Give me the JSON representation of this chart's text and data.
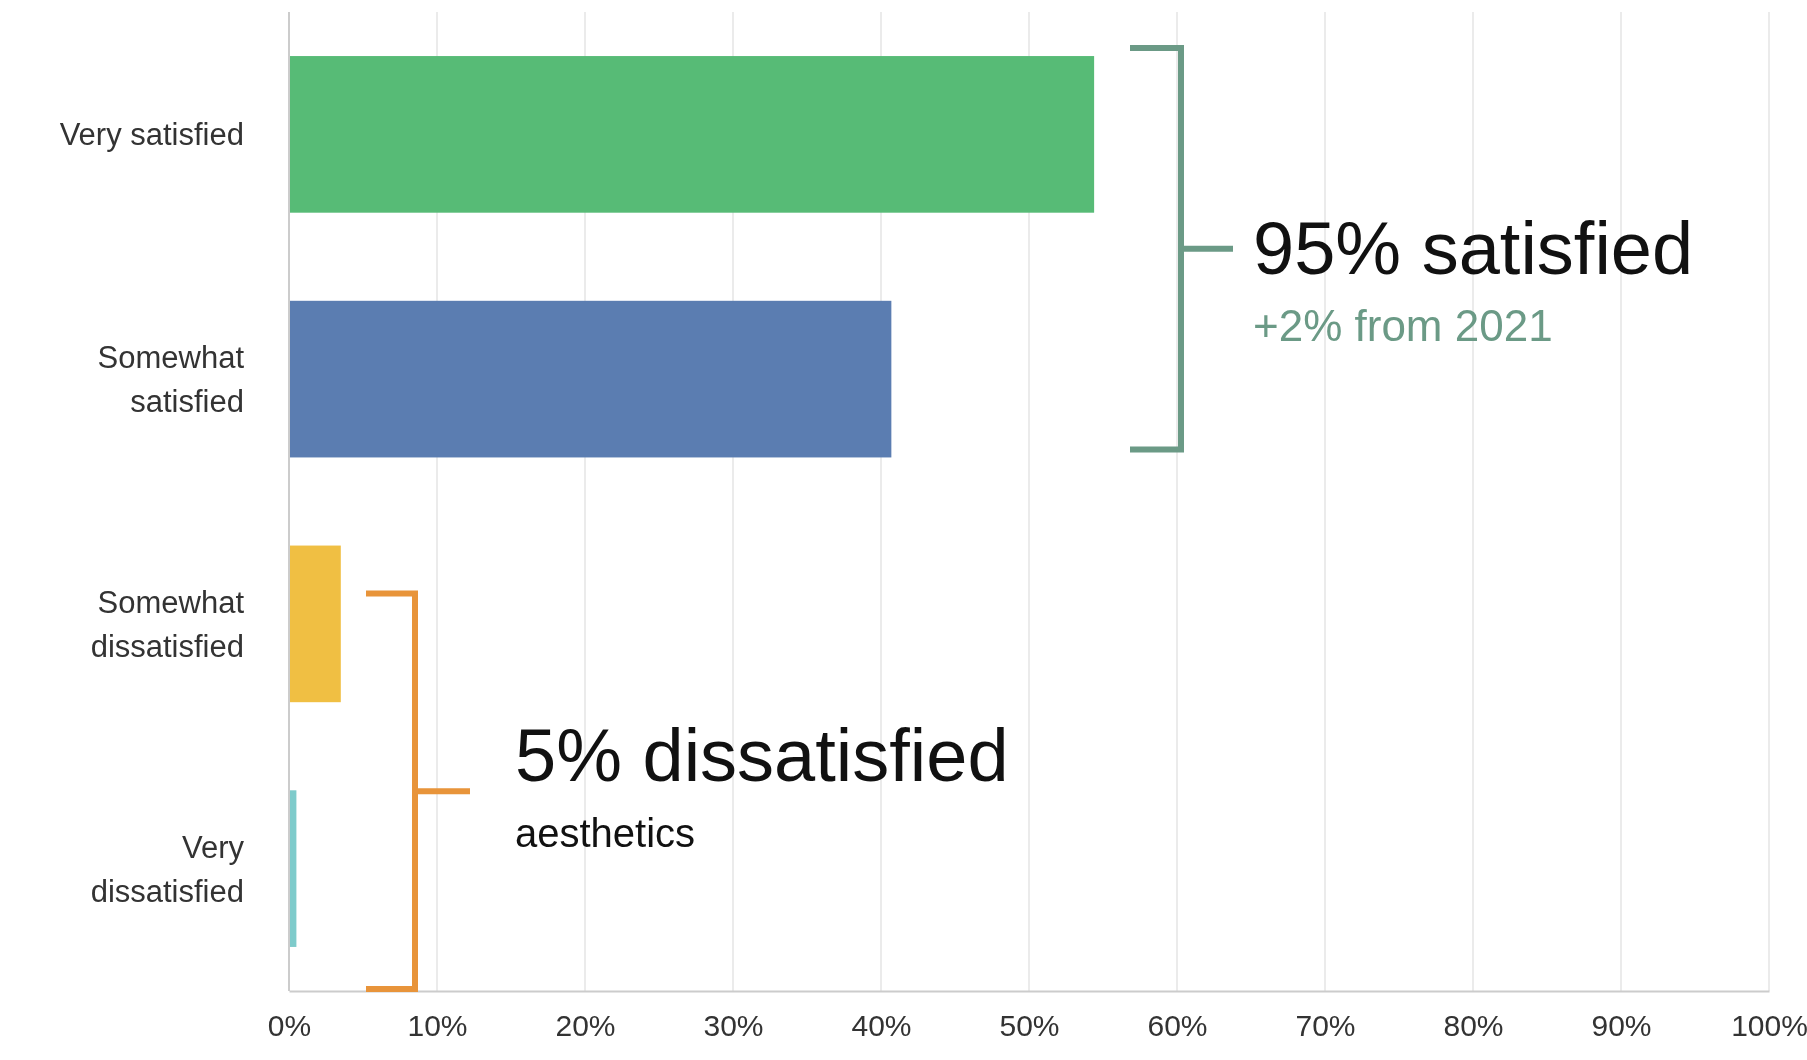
{
  "chart_data": {
    "type": "bar",
    "orientation": "horizontal",
    "categories": [
      "Very satisfied",
      "Somewhat satisfied",
      "Somewhat dissatisfied",
      "Very dissatisfied"
    ],
    "values": [
      54.4,
      40.7,
      3.5,
      0.5
    ],
    "colors": [
      "#57bb76",
      "#5b7db1",
      "#f0bf43",
      "#7ecbcb"
    ],
    "xlim": [
      0,
      100
    ],
    "xticks": [
      {
        "value": 0,
        "label": "0%"
      },
      {
        "value": 10,
        "label": "10%"
      },
      {
        "value": 20,
        "label": "20%"
      },
      {
        "value": 30,
        "label": "30%"
      },
      {
        "value": 40,
        "label": "40%"
      },
      {
        "value": 50,
        "label": "50%"
      },
      {
        "value": 60,
        "label": "60%"
      },
      {
        "value": 70,
        "label": "70%"
      },
      {
        "value": 80,
        "label": "80%"
      },
      {
        "value": 90,
        "label": "90%"
      },
      {
        "value": 100,
        "label": "100%"
      }
    ],
    "grid": "x",
    "annotations": [
      "95% satisfied",
      "+2% from 2021",
      "5% dissatisfied",
      "aesthetics"
    ]
  }
}
